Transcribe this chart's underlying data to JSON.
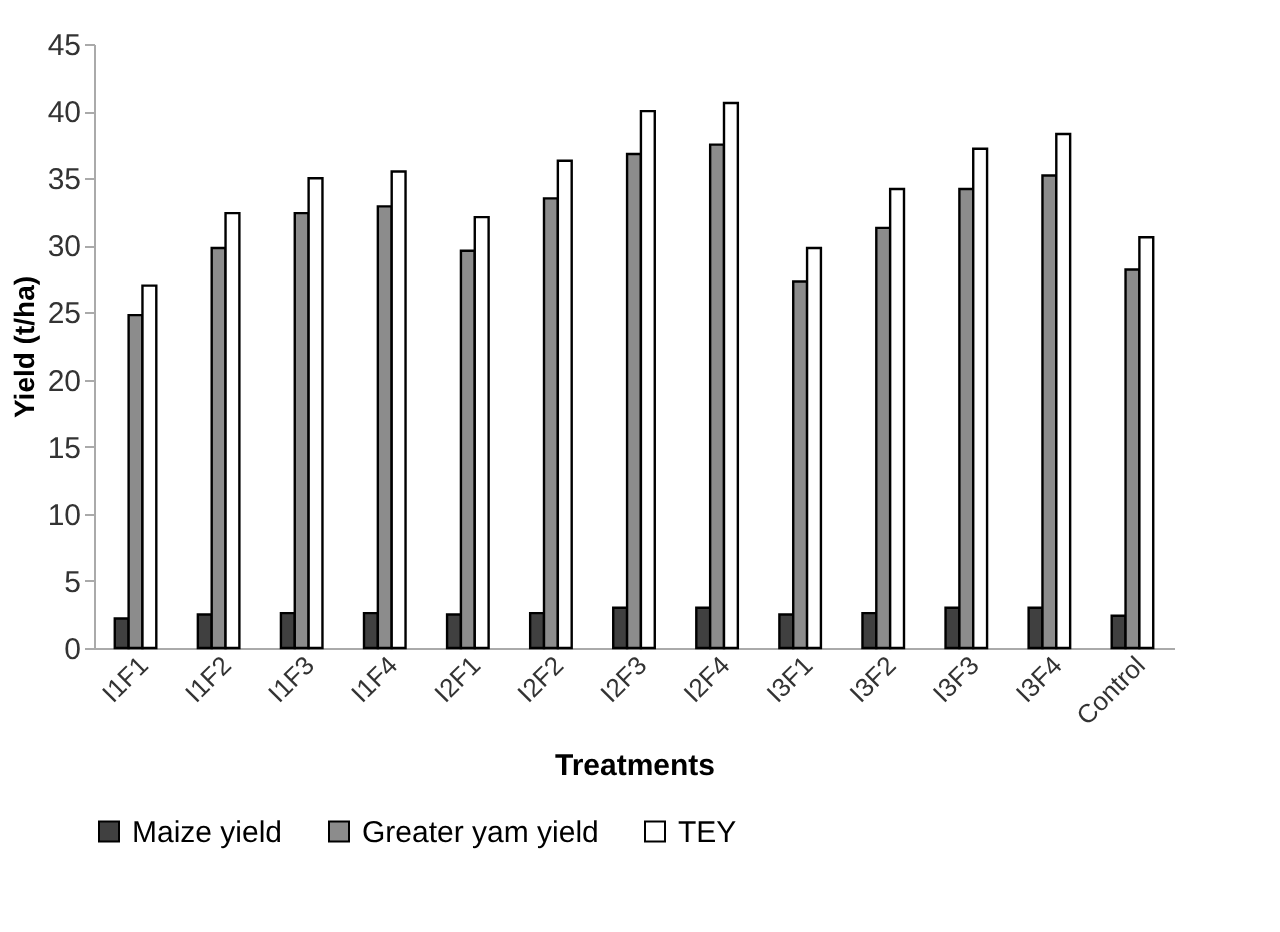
{
  "chart_data": {
    "type": "bar",
    "xlabel": "Treatments",
    "ylabel": "Yield (t/ha)",
    "categories": [
      "I1F1",
      "I1F2",
      "I1F3",
      "I1F4",
      "I2F1",
      "I2F2",
      "I2F3",
      "I2F4",
      "I3F1",
      "I3F2",
      "I3F3",
      "I3F4",
      "Control"
    ],
    "series": [
      {
        "name": "Maize yield",
        "color": "#404040",
        "values": [
          2.2,
          2.5,
          2.6,
          2.6,
          2.5,
          2.6,
          3.0,
          3.0,
          2.5,
          2.6,
          3.0,
          3.0,
          2.4
        ]
      },
      {
        "name": "Greater yam yield",
        "color": "#8c8c8c",
        "values": [
          24.8,
          29.8,
          32.4,
          32.9,
          29.6,
          33.5,
          36.8,
          37.5,
          27.3,
          31.3,
          34.2,
          35.2,
          28.2
        ]
      },
      {
        "name": "TEY",
        "color": "#ffffff",
        "values": [
          27.0,
          32.4,
          35.0,
          35.5,
          32.1,
          36.3,
          40.0,
          40.6,
          29.8,
          34.2,
          37.2,
          38.3,
          30.6
        ]
      }
    ],
    "ylim": [
      0,
      45
    ],
    "yticks": [
      0,
      5,
      10,
      15,
      20,
      25,
      30,
      35,
      40,
      45
    ],
    "grid": false,
    "legend": "bottom"
  }
}
